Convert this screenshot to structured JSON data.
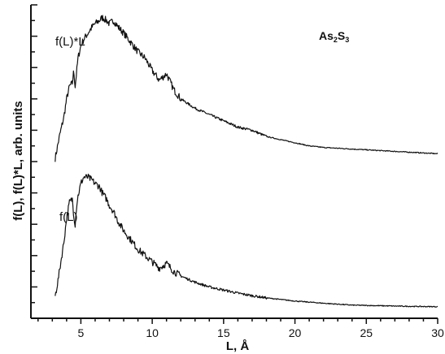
{
  "chart_data": {
    "type": "line",
    "title": "",
    "xlabel": "L, Å",
    "ylabel": "f(L), f(L)*L, arb. units",
    "xlim": [
      1.5,
      30
    ],
    "ylim": [
      0,
      10
    ],
    "x_ticks": [
      5,
      10,
      15,
      20,
      25,
      30
    ],
    "x_tick_labels": [
      "5",
      "10",
      "15",
      "20",
      "25",
      "30"
    ],
    "y_tick_labels_shown": false,
    "grid": false,
    "legend": "none",
    "annotations": {
      "compound_main": "As",
      "compound_sub1": "2",
      "compound_mid": "S",
      "compound_sub2": "3"
    },
    "series": [
      {
        "name": "f(L)*L",
        "color": "#111111",
        "x": [
          3.2,
          3.5,
          3.8,
          4.0,
          4.2,
          4.4,
          4.5,
          4.6,
          4.8,
          5.0,
          5.2,
          5.5,
          5.8,
          6.0,
          6.3,
          6.5,
          6.8,
          7.0,
          7.3,
          7.6,
          8.0,
          8.5,
          9.0,
          9.5,
          10.0,
          10.5,
          11.0,
          11.5,
          12.0,
          13.0,
          14.0,
          15.0,
          16.0,
          17.0,
          18.0,
          19.0,
          20.0,
          21.0,
          22.0,
          24.0,
          26.0,
          28.0,
          30.0
        ],
        "y": [
          5.1,
          5.8,
          6.4,
          7.0,
          7.4,
          7.5,
          7.9,
          7.4,
          8.3,
          8.7,
          8.9,
          9.1,
          9.3,
          9.4,
          9.5,
          9.6,
          9.5,
          9.4,
          9.5,
          9.3,
          9.1,
          8.8,
          8.5,
          8.3,
          7.9,
          7.6,
          7.8,
          7.3,
          7.0,
          6.7,
          6.5,
          6.3,
          6.1,
          6.0,
          5.8,
          5.7,
          5.6,
          5.5,
          5.45,
          5.4,
          5.35,
          5.3,
          5.25
        ]
      },
      {
        "name": "f(L)",
        "color": "#111111",
        "x": [
          3.2,
          3.4,
          3.6,
          3.8,
          4.0,
          4.2,
          4.4,
          4.5,
          4.6,
          4.7,
          4.8,
          5.0,
          5.2,
          5.5,
          5.8,
          6.0,
          6.3,
          6.5,
          6.8,
          7.0,
          7.3,
          7.6,
          8.0,
          8.5,
          9.0,
          9.5,
          10.0,
          10.5,
          11.0,
          11.5,
          12.0,
          13.0,
          14.0,
          15.0,
          16.0,
          17.0,
          18.0,
          20.0,
          22.0,
          24.0,
          26.0,
          28.0,
          30.0
        ],
        "y": [
          0.7,
          1.2,
          1.8,
          2.4,
          3.2,
          3.7,
          3.8,
          3.3,
          3.0,
          3.6,
          3.9,
          4.3,
          4.5,
          4.5,
          4.4,
          4.3,
          4.2,
          4.0,
          3.8,
          3.6,
          3.4,
          3.1,
          2.8,
          2.5,
          2.2,
          2.0,
          1.8,
          1.6,
          1.75,
          1.5,
          1.35,
          1.15,
          1.0,
          0.9,
          0.8,
          0.72,
          0.65,
          0.55,
          0.48,
          0.42,
          0.4,
          0.38,
          0.37
        ]
      }
    ]
  }
}
